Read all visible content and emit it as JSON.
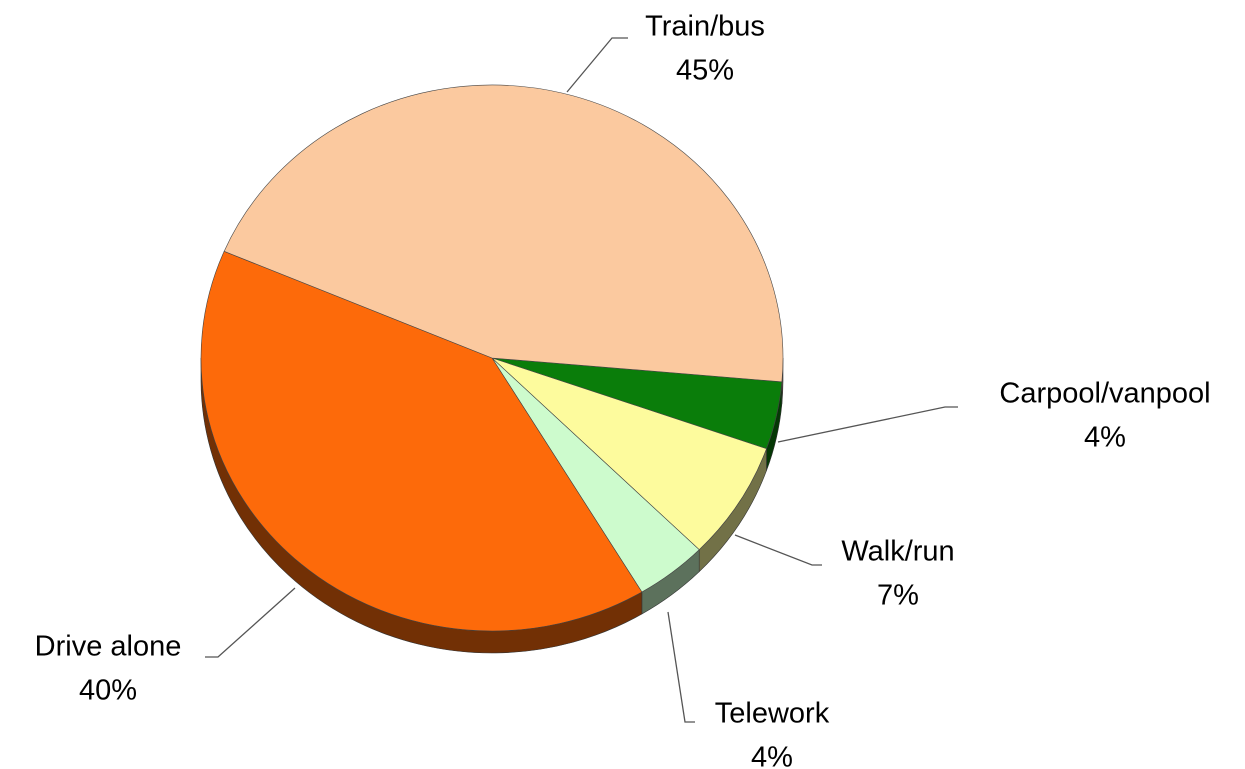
{
  "chart_data": {
    "type": "pie",
    "categories": [
      "Carpool/vanpool",
      "Walk/run",
      "Telework",
      "Drive alone",
      "Train/bus"
    ],
    "values": [
      4,
      7,
      4,
      40,
      45
    ],
    "value_labels": [
      "4%",
      "7%",
      "4%",
      "40%",
      "45%"
    ],
    "colors": [
      "#0a7d0a",
      "#fdfb9d",
      "#cdfbcd",
      "#fd6a0a",
      "#fbc99f"
    ]
  }
}
